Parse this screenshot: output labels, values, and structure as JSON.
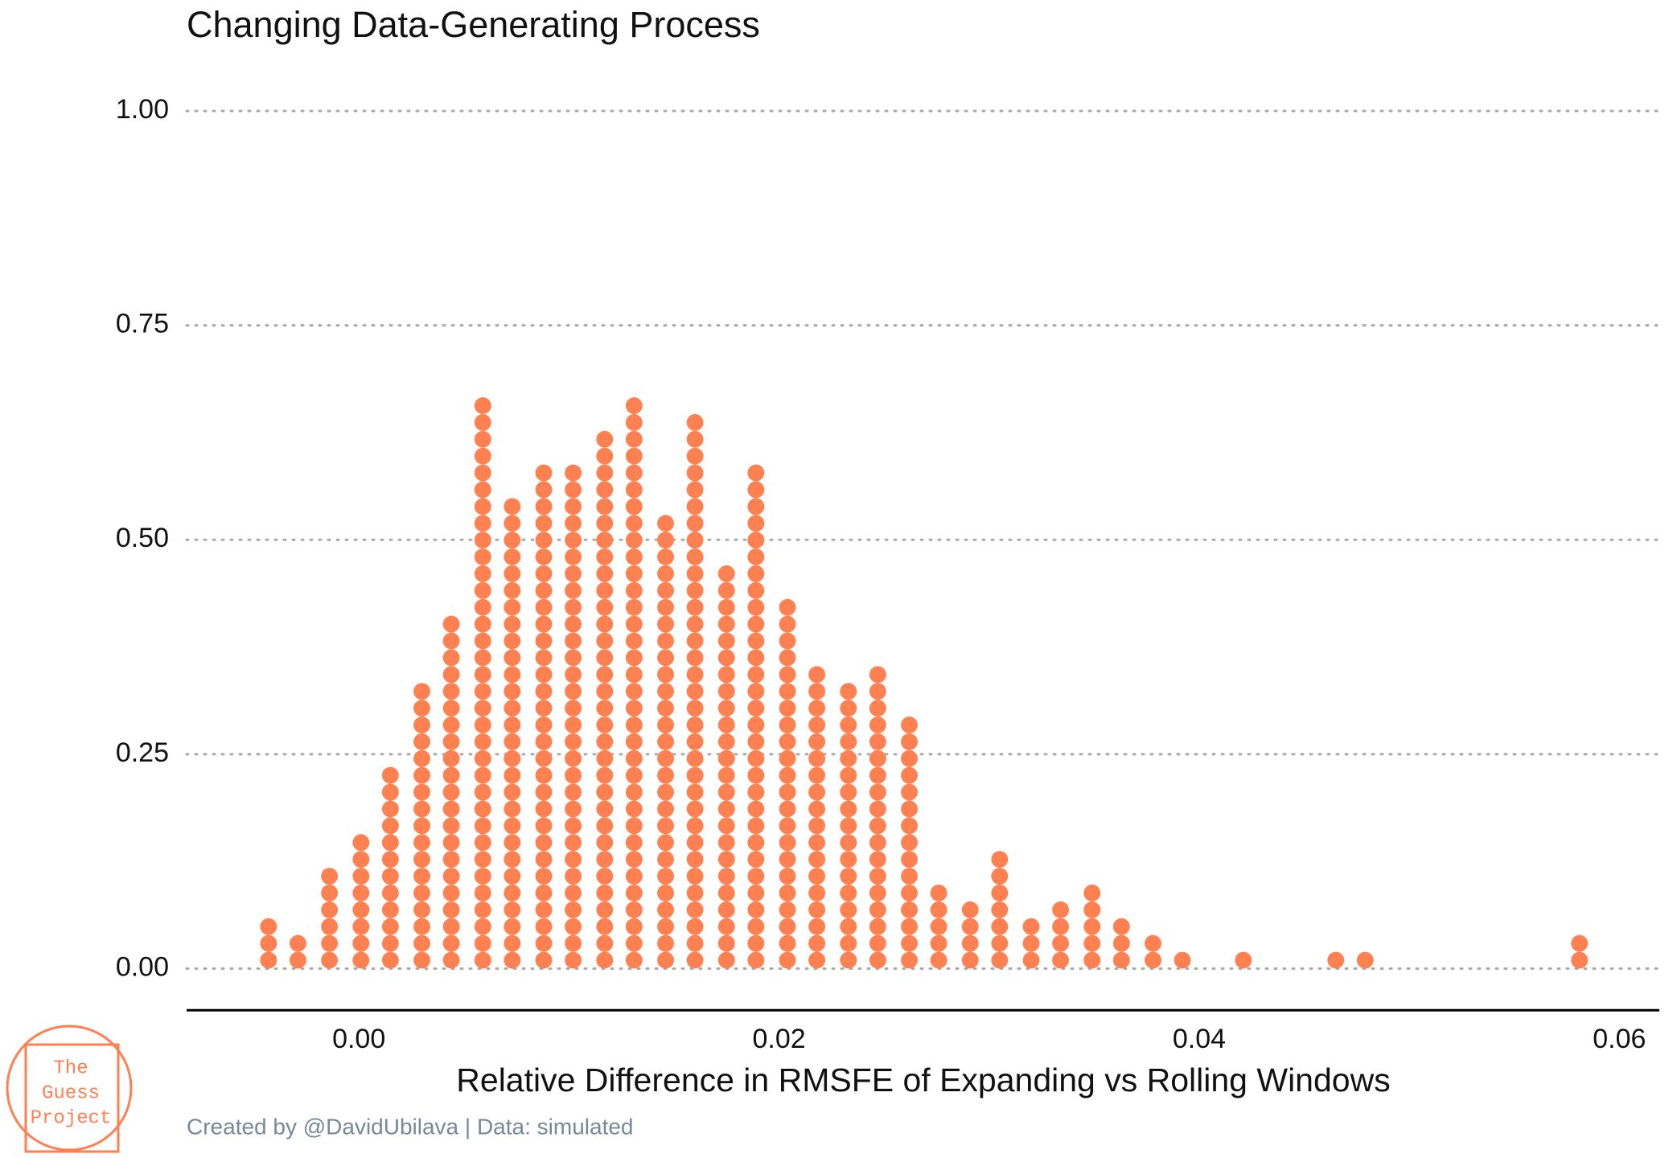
{
  "chart_data": {
    "type": "dotplot",
    "title": "Changing Data-Generating Process",
    "x_label": "Relative Difference in RMSFE of Expanding vs Rolling Windows",
    "caption": "Created by @DavidUbilava | Data: simulated",
    "x": [
      -0.0043,
      -0.0029,
      -0.0014,
      0.0001,
      0.0015,
      0.003,
      0.0044,
      0.0059,
      0.0073,
      0.0088,
      0.0102,
      0.0117,
      0.0131,
      0.0146,
      0.016,
      0.0175,
      0.0189,
      0.0204,
      0.0218,
      0.0233,
      0.0247,
      0.0262,
      0.0276,
      0.0291,
      0.0305,
      0.032,
      0.0334,
      0.0349,
      0.0363,
      0.0378,
      0.0392,
      0.0421,
      0.0465,
      0.0479,
      0.0581
    ],
    "counts": [
      3,
      2,
      6,
      8,
      12,
      17,
      21,
      34,
      28,
      30,
      30,
      32,
      34,
      27,
      33,
      24,
      30,
      22,
      18,
      17,
      18,
      15,
      5,
      4,
      7,
      3,
      4,
      5,
      3,
      2,
      1,
      1,
      1,
      1,
      2
    ],
    "binwidth": 0.0008,
    "color": "#ff8050",
    "xlim": [
      -0.0082,
      0.0619
    ],
    "ylim": [
      -0.05,
      1.05
    ],
    "xticks": [
      {
        "value": 0,
        "label": "0.00"
      },
      {
        "value": 0.02,
        "label": "0.02"
      },
      {
        "value": 0.04,
        "label": "0.04"
      },
      {
        "value": 0.06,
        "label": "0.06"
      }
    ],
    "yticks": [
      {
        "value": 0,
        "label": "0.00"
      },
      {
        "value": 0.25,
        "label": "0.25"
      },
      {
        "value": 0.5,
        "label": "0.50"
      },
      {
        "value": 0.75,
        "label": "0.75"
      },
      {
        "value": 1,
        "label": "1.00"
      }
    ],
    "grid": true
  },
  "logo": {
    "lines": [
      "The",
      "Guess",
      "Project"
    ]
  }
}
